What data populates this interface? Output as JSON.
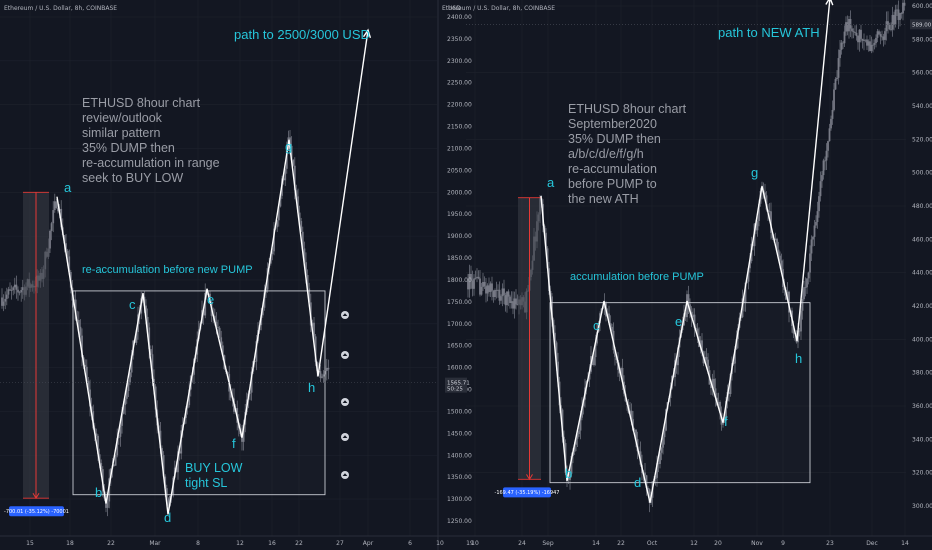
{
  "colors": {
    "background": "#131722",
    "grid": "#1e222d",
    "candle": "#787b86",
    "wave_line": "#ffffff",
    "annotation": "#26c6da",
    "note": "#9a9da6",
    "measure_fill": "#3a3e47",
    "measure_line": "#e53935",
    "badge": "#2962ff"
  },
  "chart_data": [
    {
      "type": "line",
      "panel": "left",
      "symbol_title": "Ethereum / U.S. Dollar, 8h, COINBASE",
      "y_ticks": [
        "2400.00",
        "2350.00",
        "2300.00",
        "2250.00",
        "2200.00",
        "2150.00",
        "2100.00",
        "2050.00",
        "2000.00",
        "1950.00",
        "1900.00",
        "1850.00",
        "1800.00",
        "1750.00",
        "1700.00",
        "1650.00",
        "1600.00",
        "1550.00",
        "1500.00",
        "1450.00",
        "1400.00",
        "1350.00",
        "1300.00",
        "1250.00"
      ],
      "ylim": [
        1230,
        2410
      ],
      "x_ticks": [
        "15",
        "18",
        "22",
        "Mar",
        "8",
        "12",
        "16",
        "22",
        "27",
        "Apr",
        "6",
        "10",
        "19"
      ],
      "current_price": "1565.71",
      "countdown": "50:25",
      "measure_label": "-700.01 (-35.12%) -70001",
      "note": [
        "ETHUSD 8hour chart",
        "review/outlook",
        "similar pattern",
        "35% DUMP then",
        "re-accumulation in range",
        "seek to BUY LOW"
      ],
      "header_note": "path to 2500/3000 USD",
      "range_note": "re-accumulation before new PUMP",
      "buy_note": [
        "BUY LOW",
        "tight SL"
      ],
      "wave": {
        "labels": [
          "a",
          "b",
          "c",
          "d",
          "e",
          "f",
          "g",
          "h"
        ],
        "x": [
          "Feb 20",
          "Feb 26",
          "Mar 3",
          "Mar 10",
          "Mar 15",
          "Mar 21",
          "Mar 26",
          "Apr 2",
          "Apr 11"
        ],
        "y": [
          1990,
          1290,
          1770,
          1265,
          1780,
          1440,
          2120,
          1580,
          2370
        ]
      },
      "accumulation_range": [
        1310,
        1775
      ],
      "dump_start": 2000,
      "dump_end": 1302
    },
    {
      "type": "line",
      "panel": "right",
      "symbol_title": "Ethereum / U.S. Dollar, 8h, COINBASE",
      "y_label": "USD",
      "y_ticks": [
        "600.00",
        "580.00",
        "560.00",
        "540.00",
        "520.00",
        "500.00",
        "480.00",
        "460.00",
        "440.00",
        "420.00",
        "400.00",
        "380.00",
        "360.00",
        "340.00",
        "320.00",
        "300.00"
      ],
      "ylim": [
        293,
        603
      ],
      "x_ticks": [
        "10",
        "24",
        "Sep",
        "14",
        "22",
        "Oct",
        "12",
        "20",
        "Nov",
        "9",
        "23",
        "Dec",
        "14"
      ],
      "current_price": "589.00",
      "measure_label": "-169.47 (-35.19%) -16947",
      "note": [
        "ETHUSD 8hour chart",
        "September2020",
        "35% DUMP then",
        "a/b/c/d/e/f/g/h",
        "re-accumulation",
        "before PUMP to",
        "the new ATH"
      ],
      "header_note": "path to NEW ATH",
      "range_note": "accumulation before PUMP",
      "wave": {
        "labels": [
          "a",
          "b",
          "c",
          "d",
          "e",
          "f",
          "g",
          "h"
        ],
        "x": [
          "Aug 29",
          "Sep 5",
          "Sep 16",
          "Sep 25",
          "Oct 11",
          "Oct 22",
          "Nov 5",
          "Nov 16",
          "Nov 24"
        ],
        "y": [
          486,
          315,
          423,
          302,
          423,
          350,
          492,
          399,
          605
        ]
      },
      "accumulation_range": [
        314,
        422
      ],
      "dump_start": 485,
      "dump_end": 316
    }
  ]
}
